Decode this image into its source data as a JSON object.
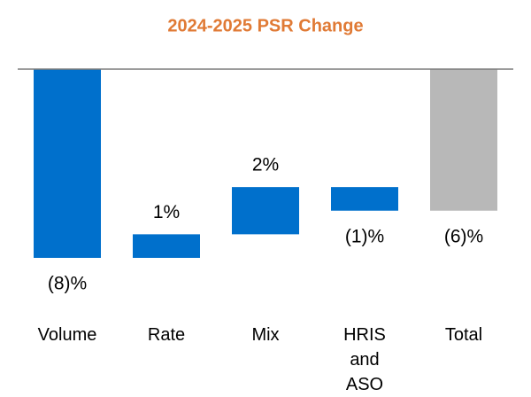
{
  "chart_data": {
    "type": "waterfall",
    "title": "2024-2025 PSR Change",
    "categories": [
      "Volume",
      "Rate",
      "Mix",
      "HRIS and ASO",
      "Total"
    ],
    "values": [
      -8,
      1,
      2,
      -1,
      -6
    ],
    "value_labels": [
      "(8)%",
      "1%",
      "2%",
      "(1)%",
      "(6)%"
    ],
    "measures": [
      "relative",
      "relative",
      "relative",
      "relative",
      "total"
    ],
    "colors": [
      "#0070cc",
      "#0070cc",
      "#0070cc",
      "#0070cc",
      "#b8b8b8"
    ],
    "ylim": [
      -8,
      0
    ]
  }
}
